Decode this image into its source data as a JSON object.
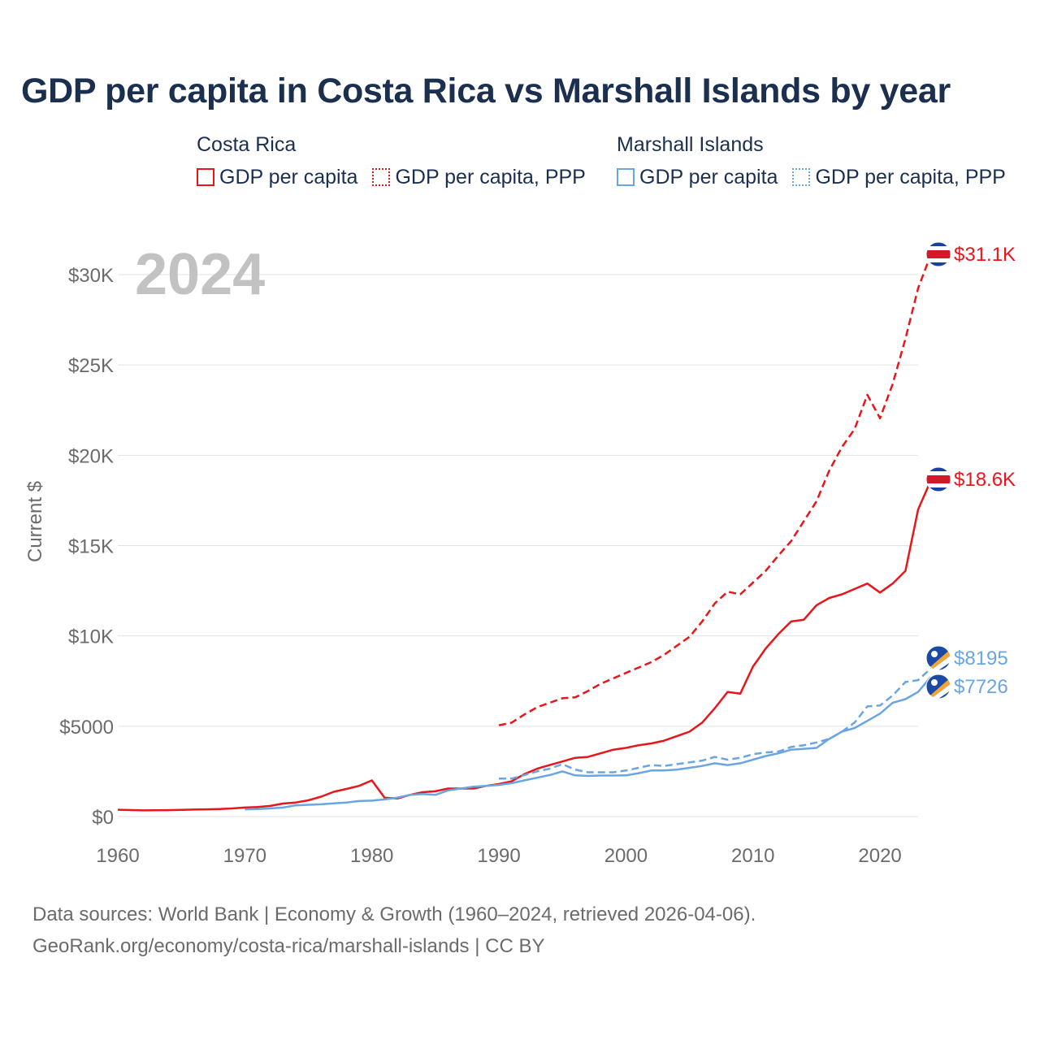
{
  "title": "GDP per capita in Costa Rica vs Marshall Islands by year",
  "legend": {
    "groups": [
      {
        "name": "Costa Rica",
        "items": [
          "GDP per capita",
          "GDP per capita, PPP"
        ],
        "color": "#e8161b"
      },
      {
        "name": "Marshall Islands",
        "items": [
          "GDP per capita",
          "GDP per capita, PPP"
        ],
        "color": "#6aa5e3"
      }
    ]
  },
  "year_watermark": "2024",
  "end_labels": {
    "cr_ppp": "$31.1K",
    "cr_gdp": "$18.6K",
    "mh_ppp": "$8195",
    "mh_gdp": "$7726"
  },
  "footer": {
    "line1": "Data sources: World Bank | Economy & Growth (1960–2024, retrieved 2026-04-06).",
    "line2": "GeoRank.org/economy/costa-rica/marshall-islands | CC BY"
  },
  "chart_data": {
    "type": "line",
    "title": "GDP per capita in Costa Rica vs Marshall Islands by year",
    "xlabel": "",
    "ylabel": "Current $",
    "xlim": [
      1960,
      2024
    ],
    "ylim": [
      0,
      32000
    ],
    "x_ticks": [
      1960,
      1970,
      1980,
      1990,
      2000,
      2010,
      2020
    ],
    "x_tick_labels": [
      "1960",
      "1970",
      "1980",
      "1990",
      "2000",
      "2010",
      "2020"
    ],
    "y_ticks": [
      0,
      5000,
      10000,
      15000,
      20000,
      25000,
      30000
    ],
    "y_tick_labels": [
      "$0",
      "$5000",
      "$10K",
      "$15K",
      "$20K",
      "$25K",
      "$30K"
    ],
    "grid": true,
    "series": [
      {
        "name": "Costa Rica GDP per capita",
        "color": "#e8161b",
        "style": "solid",
        "x": [
          1960,
          1961,
          1962,
          1963,
          1964,
          1965,
          1966,
          1967,
          1968,
          1969,
          1970,
          1971,
          1972,
          1973,
          1974,
          1975,
          1976,
          1977,
          1978,
          1979,
          1980,
          1981,
          1982,
          1983,
          1984,
          1985,
          1986,
          1987,
          1988,
          1989,
          1990,
          1991,
          1992,
          1993,
          1994,
          1995,
          1996,
          1997,
          1998,
          1999,
          2000,
          2001,
          2002,
          2003,
          2004,
          2005,
          2006,
          2007,
          2008,
          2009,
          2010,
          2011,
          2012,
          2013,
          2014,
          2015,
          2016,
          2017,
          2018,
          2019,
          2020,
          2021,
          2022,
          2023,
          2024
        ],
        "values": [
          380,
          360,
          340,
          345,
          355,
          370,
          385,
          400,
          420,
          450,
          500,
          530,
          590,
          720,
          780,
          900,
          1100,
          1370,
          1530,
          1700,
          2000,
          1050,
          1000,
          1200,
          1350,
          1400,
          1550,
          1550,
          1550,
          1700,
          1800,
          1950,
          2350,
          2650,
          2850,
          3050,
          3250,
          3300,
          3500,
          3700,
          3800,
          3950,
          4050,
          4200,
          4450,
          4700,
          5200,
          6000,
          6900,
          6800,
          8300,
          9300,
          10100,
          10800,
          10900,
          11700,
          12100,
          12300,
          12600,
          12900,
          12400,
          12900,
          13600,
          17000,
          18600
        ]
      },
      {
        "name": "Costa Rica GDP per capita, PPP",
        "color": "#e8161b",
        "style": "dashed",
        "x": [
          1990,
          1991,
          1992,
          1993,
          1994,
          1995,
          1996,
          1997,
          1998,
          1999,
          2000,
          2001,
          2002,
          2003,
          2004,
          2005,
          2006,
          2007,
          2008,
          2009,
          2010,
          2011,
          2012,
          2013,
          2014,
          2015,
          2016,
          2017,
          2018,
          2019,
          2020,
          2021,
          2022,
          2023,
          2024
        ],
        "values": [
          5050,
          5200,
          5650,
          6050,
          6300,
          6550,
          6600,
          6950,
          7350,
          7650,
          7950,
          8250,
          8550,
          8950,
          9450,
          9950,
          10800,
          11800,
          12450,
          12300,
          12950,
          13600,
          14450,
          15250,
          16350,
          17450,
          19150,
          20450,
          21450,
          23350,
          22050,
          23950,
          26450,
          29250,
          31100
        ]
      },
      {
        "name": "Marshall Islands GDP per capita",
        "color": "#6aa5e3",
        "style": "solid",
        "x": [
          1970,
          1971,
          1972,
          1973,
          1974,
          1975,
          1976,
          1977,
          1978,
          1979,
          1980,
          1981,
          1982,
          1983,
          1984,
          1985,
          1986,
          1987,
          1988,
          1989,
          1990,
          1991,
          1992,
          1993,
          1994,
          1995,
          1996,
          1997,
          1998,
          1999,
          2000,
          2001,
          2002,
          2003,
          2004,
          2005,
          2006,
          2007,
          2008,
          2009,
          2010,
          2011,
          2012,
          2013,
          2014,
          2015,
          2016,
          2017,
          2018,
          2019,
          2020,
          2021,
          2022,
          2023,
          2024
        ],
        "values": [
          400,
          420,
          450,
          500,
          620,
          650,
          680,
          730,
          780,
          860,
          880,
          950,
          1050,
          1200,
          1250,
          1200,
          1450,
          1550,
          1650,
          1700,
          1750,
          1850,
          2000,
          2150,
          2300,
          2500,
          2280,
          2250,
          2270,
          2270,
          2280,
          2400,
          2550,
          2550,
          2600,
          2700,
          2800,
          2950,
          2850,
          2950,
          3150,
          3350,
          3500,
          3700,
          3750,
          3800,
          4300,
          4700,
          4900,
          5300,
          5700,
          6300,
          6500,
          6900,
          7726
        ]
      },
      {
        "name": "Marshall Islands GDP per capita, PPP",
        "color": "#6aa5e3",
        "style": "dashed",
        "x": [
          1990,
          1991,
          1992,
          1993,
          1994,
          1995,
          1996,
          1997,
          1998,
          1999,
          2000,
          2001,
          2002,
          2003,
          2004,
          2005,
          2006,
          2007,
          2008,
          2009,
          2010,
          2011,
          2012,
          2013,
          2014,
          2015,
          2016,
          2017,
          2018,
          2019,
          2020,
          2021,
          2022,
          2023,
          2024
        ],
        "values": [
          2100,
          2100,
          2300,
          2500,
          2650,
          2900,
          2600,
          2450,
          2450,
          2450,
          2550,
          2700,
          2850,
          2800,
          2900,
          3000,
          3100,
          3300,
          3150,
          3250,
          3450,
          3550,
          3600,
          3850,
          3950,
          4100,
          4300,
          4700,
          5200,
          6100,
          6150,
          6700,
          7450,
          7550,
          8195
        ]
      }
    ]
  }
}
